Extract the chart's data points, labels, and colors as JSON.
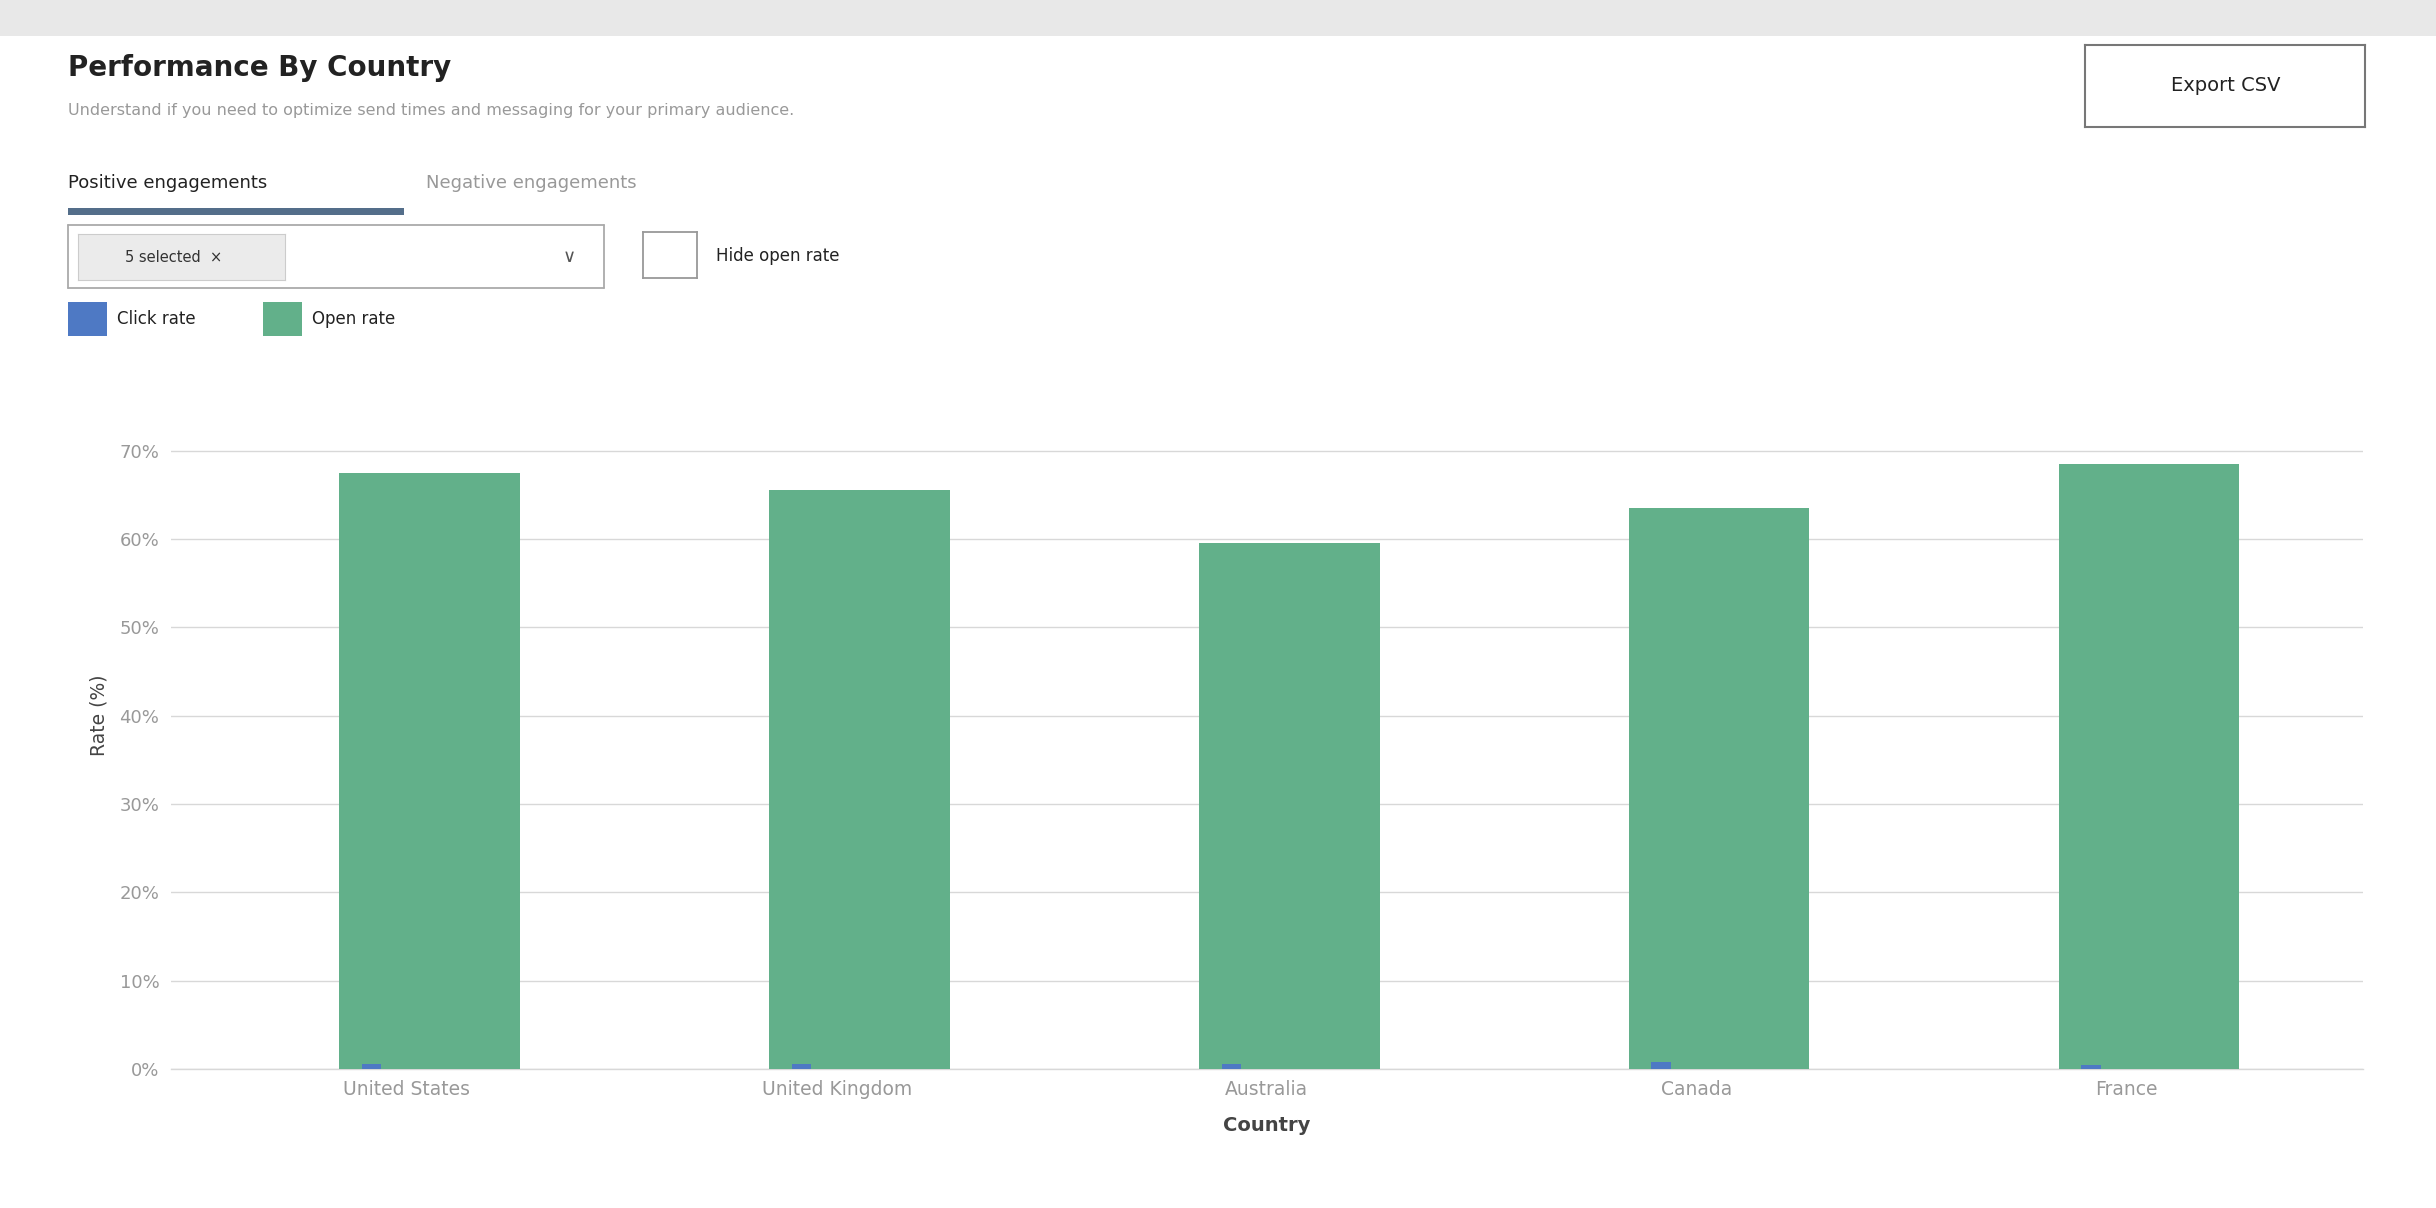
{
  "title": "Performance By Country",
  "subtitle": "Understand if you need to optimize send times and messaging for your primary audience.",
  "tab_active": "Positive engagements",
  "tab_inactive": "Negative engagements",
  "dropdown_label": "5 selected  ×",
  "checkbox_label": "Hide open rate",
  "export_btn": "Export CSV",
  "legend": [
    {
      "label": "Click rate",
      "color": "#4e79c4"
    },
    {
      "label": "Open rate",
      "color": "#62b08a"
    }
  ],
  "categories": [
    "United States",
    "United Kingdom",
    "Australia",
    "Canada",
    "France"
  ],
  "click_rates": [
    0.6,
    0.6,
    0.6,
    0.8,
    0.5
  ],
  "open_rates": [
    67.5,
    65.5,
    59.5,
    63.5,
    68.5
  ],
  "ylabel": "Rate (%)",
  "xlabel": "Country",
  "ylim": [
    0,
    80
  ],
  "yticks": [
    0,
    10,
    20,
    30,
    40,
    50,
    60,
    70
  ],
  "ytick_labels": [
    "0%",
    "10%",
    "20%",
    "30%",
    "40%",
    "50%",
    "60%",
    "70%"
  ],
  "open_rate_color": "#62b08a",
  "click_rate_color": "#4e79c4",
  "background_color": "#ffffff",
  "outer_bg": "#f0f0f0",
  "grid_color": "#d8d8d8",
  "title_color": "#222222",
  "subtitle_color": "#999999",
  "axis_label_color": "#444444",
  "tick_color": "#999999",
  "tab_underline_color": "#546e8a",
  "btn_border_color": "#aaaaaa"
}
